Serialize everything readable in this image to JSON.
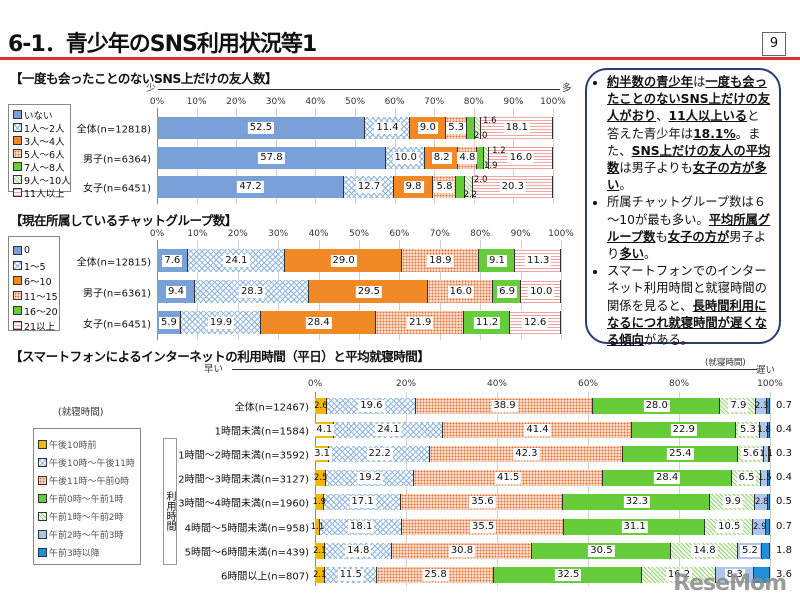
{
  "header": {
    "title": "6-1．青少年のSNS利用状況等1",
    "page_number": "9"
  },
  "notes": [
    [
      {
        "t": "約半数の青少年",
        "u": true
      },
      {
        "t": "は"
      },
      {
        "t": "一度も会ったことのないSNS上だけの友人がおり",
        "u": true
      },
      {
        "t": "、"
      },
      {
        "t": "11人以上いる",
        "u": true
      },
      {
        "t": "と答えた青少年は"
      },
      {
        "t": "18.1%",
        "u": true
      },
      {
        "t": "。また、"
      },
      {
        "t": "SNS上だけの友人の平均数",
        "u": true
      },
      {
        "t": "は男子よりも"
      },
      {
        "t": "女子の方が多い",
        "u": true
      },
      {
        "t": "。"
      }
    ],
    [
      {
        "t": "所属チャットグループ数は６～10が最も多い。"
      },
      {
        "t": "平均所属グループ数",
        "u": true
      },
      {
        "t": "も"
      },
      {
        "t": "女子の方が",
        "u": true
      },
      {
        "t": "男子より"
      },
      {
        "t": "多い",
        "u": true
      },
      {
        "t": "。"
      }
    ],
    [
      {
        "t": "スマートフォンでのインターネット利用時間と就寝時間の関係を見ると、"
      },
      {
        "t": "長時間利用になるにつれ就寝時間が遅くなる傾向",
        "u": true
      },
      {
        "t": "がある。"
      }
    ]
  ],
  "chart_data": [
    {
      "type": "bar",
      "stacked": true,
      "orientation": "horizontal",
      "title": "【一度も会ったことのないSNS上だけの友人数】",
      "axis_left": "少",
      "axis_right": "多",
      "xlim": [
        0,
        100
      ],
      "ticks": [
        "0%",
        "10%",
        "20%",
        "30%",
        "40%",
        "50%",
        "60%",
        "70%",
        "80%",
        "90%",
        "100%"
      ],
      "categories": [
        "全体(n=12818)",
        "男子(n=6364)",
        "女子(n=6451)"
      ],
      "series": [
        {
          "name": "いない",
          "values": [
            52.5,
            57.8,
            47.2
          ]
        },
        {
          "name": "1人～2人",
          "values": [
            11.4,
            10.0,
            12.7
          ]
        },
        {
          "name": "3人～4人",
          "values": [
            9.0,
            8.2,
            9.8
          ]
        },
        {
          "name": "5人～6人",
          "values": [
            5.3,
            4.8,
            5.8
          ]
        },
        {
          "name": "7人～8人",
          "values": [
            2.0,
            1.9,
            2.2
          ]
        },
        {
          "name": "9人～10人",
          "values": [
            1.6,
            1.2,
            2.0
          ]
        },
        {
          "name": "11人以上",
          "values": [
            18.1,
            16.0,
            20.3
          ]
        }
      ],
      "colors": [
        "#7aa0d8",
        "#8fb6e0",
        "#f18a26",
        "#fde8da",
        "#66cc3a",
        "#96d676",
        "#f2a3a3"
      ]
    },
    {
      "type": "bar",
      "stacked": true,
      "orientation": "horizontal",
      "title": "【現在所属しているチャットグループ数】",
      "xlim": [
        0,
        100
      ],
      "ticks": [
        "0%",
        "10%",
        "20%",
        "30%",
        "40%",
        "50%",
        "60%",
        "70%",
        "80%",
        "90%",
        "100%"
      ],
      "categories": [
        "全体(n=12815)",
        "男子(n=6361)",
        "女子(n=6451)"
      ],
      "series": [
        {
          "name": "0",
          "values": [
            7.6,
            9.4,
            5.9
          ]
        },
        {
          "name": "1～5",
          "values": [
            24.1,
            28.3,
            19.9
          ]
        },
        {
          "name": "6～10",
          "values": [
            29.0,
            29.5,
            28.4
          ]
        },
        {
          "name": "11～15",
          "values": [
            18.9,
            16.0,
            21.9
          ]
        },
        {
          "name": "16～20",
          "values": [
            9.1,
            6.9,
            11.2
          ]
        },
        {
          "name": "21以上",
          "values": [
            11.3,
            10.0,
            12.6
          ]
        }
      ],
      "colors": [
        "#7aa0d8",
        "#8fb6e0",
        "#f18a26",
        "#fde8da",
        "#66cc3a",
        "#f2a3a3"
      ]
    },
    {
      "type": "bar",
      "stacked": true,
      "orientation": "horizontal",
      "title": "【スマートフォンによるインターネットの利用時間（平日）と平均就寝時間】",
      "axis_left": "早い",
      "axis_right": "遅い",
      "legend_title": "(就寝時間)",
      "axis_note": "(就寝時間)",
      "row_group_label": "利用時間",
      "xlim": [
        0,
        100
      ],
      "ticks": [
        "0%",
        "20%",
        "40%",
        "60%",
        "80%",
        "100%"
      ],
      "categories": [
        "全体(n=12467)",
        "1時間未満(n=1584)",
        "1時間～2時間未満(n=3592)",
        "2時間～3時間未満(n=3127)",
        "3時間～4時間未満(n=1960)",
        "4時間～5時間未満(n=958)",
        "5時間～6時間未満(n=439)",
        "6時間以上(n=807)"
      ],
      "series": [
        {
          "name": "午後10時前",
          "values": [
            2.6,
            4.1,
            3.1,
            2.5,
            1.9,
            1.1,
            2.1,
            2.1
          ]
        },
        {
          "name": "午後10時～午後11時",
          "values": [
            19.6,
            24.1,
            22.2,
            19.2,
            17.1,
            18.1,
            14.8,
            11.5
          ]
        },
        {
          "name": "午後11時～午前0時",
          "values": [
            38.9,
            41.4,
            42.3,
            41.5,
            35.6,
            35.5,
            30.8,
            25.8
          ]
        },
        {
          "name": "午前0時～午前1時",
          "values": [
            28.0,
            22.9,
            25.4,
            28.4,
            32.3,
            31.1,
            30.5,
            32.5
          ]
        },
        {
          "name": "午前1時～午前2時",
          "values": [
            7.9,
            5.3,
            5.6,
            6.5,
            9.9,
            10.5,
            14.8,
            16.2
          ]
        },
        {
          "name": "午前2時～午前3時",
          "values": [
            2.3,
            1.8,
            1.1,
            1.5,
            2.8,
            2.9,
            5.2,
            8.3
          ]
        },
        {
          "name": "午前3時以降",
          "values": [
            0.7,
            0.4,
            0.3,
            0.4,
            0.5,
            0.7,
            1.8,
            3.6
          ]
        }
      ],
      "colors": [
        "#f5b800",
        "#8fb6e0",
        "#fde8da",
        "#66cc3a",
        "#96d676",
        "#adc7ec",
        "#1e8fd8"
      ]
    }
  ],
  "watermark": "ReseMom"
}
